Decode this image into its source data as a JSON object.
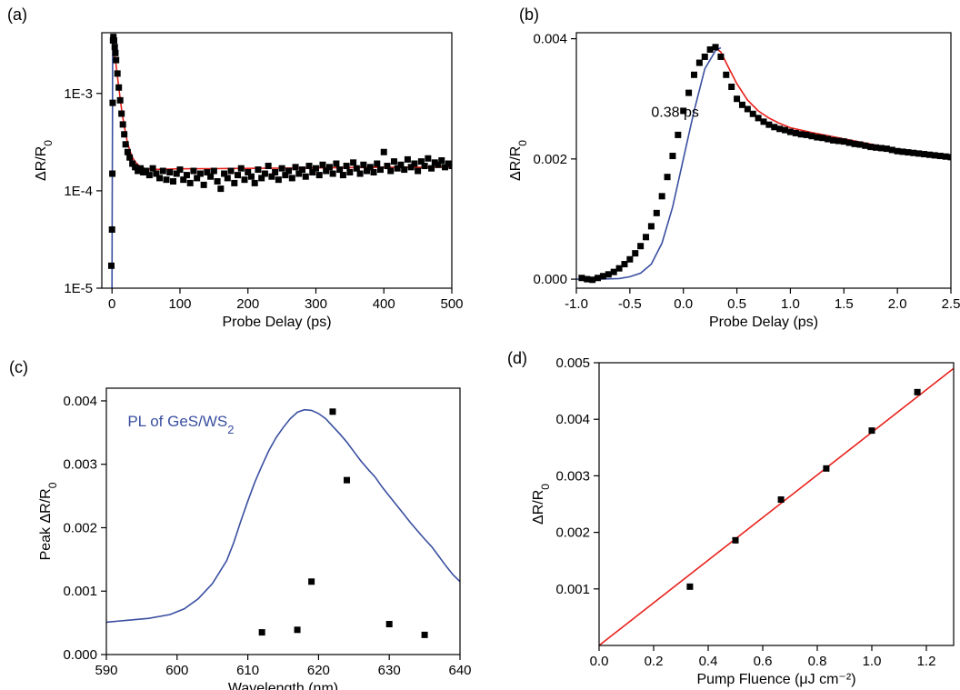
{
  "chart_data": [
    {
      "panel_label": "(a)",
      "type": "scatter",
      "xlabel": "Probe Delay (ps)",
      "ylabel_parts": [
        "ΔR/R",
        "0"
      ],
      "xlim": [
        -15,
        500
      ],
      "ylim": [
        1e-05,
        0.0042
      ],
      "yscale": "log",
      "xticks": [
        0,
        100,
        200,
        300,
        400,
        500
      ],
      "xtick_labels": [
        "0",
        "100",
        "200",
        "300",
        "400",
        "500"
      ],
      "yticks": [
        1e-05,
        0.0001,
        0.001
      ],
      "ytick_labels": [
        "1E-5",
        "1E-4",
        "1E-3"
      ],
      "series": [
        {
          "kind": "points",
          "color": "#000000",
          "x": [
            -1,
            0,
            0.5,
            1,
            1.5,
            2,
            3,
            4,
            5,
            6,
            8,
            10,
            12,
            14,
            16,
            18,
            20,
            23,
            26,
            30,
            34,
            38,
            42,
            46,
            50,
            55,
            60,
            65,
            70,
            75,
            80,
            85,
            90,
            95,
            100,
            105,
            110,
            115,
            120,
            125,
            130,
            135,
            140,
            145,
            150,
            155,
            160,
            165,
            170,
            175,
            180,
            185,
            190,
            195,
            200,
            205,
            210,
            215,
            220,
            225,
            230,
            235,
            240,
            245,
            250,
            255,
            260,
            265,
            270,
            275,
            280,
            285,
            290,
            295,
            300,
            305,
            310,
            315,
            320,
            325,
            330,
            335,
            340,
            345,
            350,
            355,
            360,
            365,
            370,
            375,
            380,
            385,
            390,
            395,
            400,
            405,
            410,
            415,
            420,
            425,
            430,
            435,
            440,
            445,
            450,
            455,
            460,
            465,
            470,
            475,
            480,
            485,
            490,
            495,
            500
          ],
          "y": [
            1.7e-05,
            4e-05,
            0.00015,
            0.0008,
            0.0035,
            0.0038,
            0.0035,
            0.003,
            0.0026,
            0.0022,
            0.0016,
            0.00115,
            0.00085,
            0.00062,
            0.00048,
            0.00038,
            0.0003,
            0.00025,
            0.00022,
            0.00019,
            0.000175,
            0.00016,
            0.00017,
            0.000155,
            0.00016,
            0.000145,
            0.00017,
            0.00015,
            0.000135,
            0.00016,
            0.00013,
            0.000155,
            0.000125,
            0.00015,
            0.000165,
            0.00013,
            0.000145,
            0.00012,
            0.00016,
            0.000135,
            0.00015,
            0.000115,
            0.000155,
            0.00014,
            0.00016,
            0.000125,
            0.000105,
            0.00015,
            0.000135,
            0.00016,
            0.00012,
            0.000145,
            0.00017,
            0.00013,
            0.000155,
            0.00014,
            0.00012,
            0.000165,
            0.000135,
            0.00015,
            0.00018,
            0.00014,
            0.000155,
            0.00013,
            0.00017,
            0.000145,
            0.00016,
            0.000135,
            0.000175,
            0.00015,
            0.000165,
            0.00014,
            0.00018,
            0.000155,
            0.00017,
            0.000145,
            0.000185,
            0.00016,
            0.000175,
            0.00015,
            0.00019,
            0.000165,
            0.000145,
            0.00018,
            0.000155,
            0.000195,
            0.00017,
            0.00015,
            0.000185,
            0.00016,
            0.000175,
            0.000155,
            0.00019,
            0.000165,
            0.00025,
            0.00018,
            0.00016,
            0.0002,
            0.00017,
            0.000185,
            0.000165,
            0.00021,
            0.000175,
            0.00019,
            0.00016,
            0.0002,
            0.00018,
            0.000215,
            0.00017,
            0.000195,
            0.000185,
            0.000205,
            0.000175,
            0.00019,
            0.00018
          ]
        },
        {
          "kind": "line",
          "color": "#e8201a",
          "x": [
            1,
            2,
            4,
            6,
            8,
            10,
            12,
            15,
            18,
            22,
            26,
            30,
            35,
            40,
            45,
            50,
            60,
            70,
            80,
            100,
            150,
            200,
            250,
            300,
            350,
            400,
            450,
            500
          ],
          "y": [
            0.0033,
            0.0031,
            0.00245,
            0.00195,
            0.0015,
            0.00115,
            0.00088,
            0.00062,
            0.00046,
            0.00033,
            0.00026,
            0.00022,
            0.000195,
            0.00018,
            0.000172,
            0.000168,
            0.000166,
            0.000166,
            0.000167,
            0.000168,
            0.000169,
            0.00017,
            0.000171,
            0.000172,
            0.000173,
            0.000174,
            0.000174,
            0.000175
          ]
        },
        {
          "kind": "line",
          "color": "#3a4fa0",
          "x": [
            0,
            0.3,
            0.6,
            0.8,
            1.0,
            1.2
          ],
          "y": [
            1e-05,
            6e-05,
            0.0004,
            0.0014,
            0.0028,
            0.0034
          ]
        }
      ]
    },
    {
      "panel_label": "(b)",
      "type": "scatter",
      "xlabel": "Probe Delay (ps)",
      "ylabel_parts": [
        "ΔR/R",
        "0"
      ],
      "xlim": [
        -1.0,
        2.5
      ],
      "ylim": [
        -0.00015,
        0.0041
      ],
      "xticks": [
        -1.0,
        -0.5,
        0.0,
        0.5,
        1.0,
        1.5,
        2.0,
        2.5
      ],
      "xtick_labels": [
        "-1.0",
        "-0.5",
        "0.0",
        "0.5",
        "1.0",
        "1.5",
        "2.0",
        "2.5"
      ],
      "yticks": [
        0.0,
        0.002,
        0.004
      ],
      "ytick_labels": [
        "0.000",
        "0.002",
        "0.004"
      ],
      "annotations": [
        {
          "text": "0.38 ps",
          "x": -0.3,
          "y": 0.0027
        }
      ],
      "series": [
        {
          "kind": "points",
          "color": "#000000",
          "x": [
            -0.95,
            -0.9,
            -0.85,
            -0.8,
            -0.75,
            -0.7,
            -0.65,
            -0.6,
            -0.55,
            -0.5,
            -0.45,
            -0.4,
            -0.35,
            -0.3,
            -0.25,
            -0.2,
            -0.15,
            -0.1,
            -0.05,
            0.0,
            0.05,
            0.1,
            0.15,
            0.2,
            0.25,
            0.3,
            0.35,
            0.4,
            0.45,
            0.5,
            0.55,
            0.6,
            0.65,
            0.7,
            0.75,
            0.8,
            0.85,
            0.9,
            0.95,
            1.0,
            1.05,
            1.1,
            1.15,
            1.2,
            1.25,
            1.3,
            1.35,
            1.4,
            1.45,
            1.5,
            1.55,
            1.6,
            1.65,
            1.7,
            1.75,
            1.8,
            1.85,
            1.9,
            1.95,
            2.0,
            2.05,
            2.1,
            2.15,
            2.2,
            2.25,
            2.3,
            2.35,
            2.4,
            2.45,
            2.5
          ],
          "y": [
            2e-05,
            0.0,
            -1e-05,
            2e-05,
            5e-05,
            8e-05,
            0.00012,
            0.00018,
            0.00025,
            0.00033,
            0.00043,
            0.00055,
            0.0007,
            0.00088,
            0.0011,
            0.00138,
            0.0017,
            0.00205,
            0.0024,
            0.0028,
            0.0031,
            0.0034,
            0.0036,
            0.0037,
            0.00382,
            0.00386,
            0.0037,
            0.0034,
            0.0032,
            0.003,
            0.0029,
            0.00283,
            0.00275,
            0.00268,
            0.00262,
            0.00257,
            0.00253,
            0.0025,
            0.00248,
            0.00245,
            0.00243,
            0.00241,
            0.0024,
            0.00238,
            0.00236,
            0.00235,
            0.00233,
            0.00231,
            0.0023,
            0.00229,
            0.00227,
            0.00225,
            0.00224,
            0.00222,
            0.0022,
            0.00219,
            0.00218,
            0.00217,
            0.00215,
            0.00213,
            0.00212,
            0.00211,
            0.0021,
            0.00209,
            0.00208,
            0.00207,
            0.00206,
            0.00205,
            0.00204,
            0.00203
          ]
        },
        {
          "kind": "line",
          "color": "#3a4fa0",
          "x": [
            -1.0,
            -0.8,
            -0.6,
            -0.5,
            -0.4,
            -0.3,
            -0.2,
            -0.1,
            0.0,
            0.1,
            0.2,
            0.3,
            0.35
          ],
          "y": [
            0.0,
            0.0,
            1e-05,
            4e-05,
            0.0001,
            0.00025,
            0.0006,
            0.0012,
            0.002,
            0.0028,
            0.0035,
            0.0038,
            0.00385
          ]
        },
        {
          "kind": "line",
          "color": "#e8201a",
          "x": [
            0.3,
            0.35,
            0.4,
            0.5,
            0.6,
            0.7,
            0.8,
            0.9,
            1.0,
            1.2,
            1.4,
            1.6,
            1.8,
            2.0,
            2.2,
            2.5
          ],
          "y": [
            0.00385,
            0.00378,
            0.0036,
            0.00325,
            0.00298,
            0.0028,
            0.00268,
            0.00259,
            0.00252,
            0.00244,
            0.00237,
            0.0023,
            0.00223,
            0.00216,
            0.0021,
            0.00202
          ]
        }
      ]
    },
    {
      "panel_label": "(c)",
      "type": "scatter",
      "xlabel": "Wavelength (nm)",
      "ylabel_parts": [
        "Peak ΔR/R",
        "0"
      ],
      "xlim": [
        590,
        640
      ],
      "ylim": [
        0,
        0.0042
      ],
      "xticks": [
        590,
        600,
        610,
        620,
        630,
        640
      ],
      "xtick_labels": [
        "590",
        "600",
        "610",
        "620",
        "630",
        "640"
      ],
      "yticks": [
        0.0,
        0.001,
        0.002,
        0.003,
        0.004
      ],
      "ytick_labels": [
        "0.000",
        "0.001",
        "0.002",
        "0.003",
        "0.004"
      ],
      "annotations": [
        {
          "text_parts": [
            "PL of GeS/WS",
            "2"
          ],
          "x": 593,
          "y": 0.0036,
          "color": "#3a4fa0"
        }
      ],
      "series": [
        {
          "kind": "points",
          "color": "#000000",
          "x": [
            612,
            617,
            619,
            622,
            624,
            630,
            635
          ],
          "y": [
            0.00035,
            0.00039,
            0.00115,
            0.00383,
            0.00275,
            0.00048,
            0.00031
          ]
        },
        {
          "kind": "line",
          "color": "#3a4fa0",
          "x": [
            590,
            593,
            596,
            599,
            601,
            603,
            605,
            607,
            608,
            609,
            610,
            611,
            612,
            613,
            614,
            615,
            616,
            617,
            618,
            619,
            620,
            621,
            622,
            623,
            624,
            625,
            626,
            627,
            628,
            629,
            630,
            631,
            632,
            633,
            634,
            635,
            636,
            637,
            638,
            639,
            640
          ],
          "y": [
            0.00051,
            0.00054,
            0.00057,
            0.00063,
            0.00072,
            0.00088,
            0.00112,
            0.00148,
            0.00176,
            0.0021,
            0.00242,
            0.00272,
            0.00298,
            0.00322,
            0.00342,
            0.00358,
            0.00372,
            0.00382,
            0.00386,
            0.00385,
            0.0038,
            0.00372,
            0.0036,
            0.00348,
            0.00335,
            0.0032,
            0.00305,
            0.00292,
            0.0028,
            0.00264,
            0.0025,
            0.00236,
            0.00222,
            0.00208,
            0.00195,
            0.00182,
            0.0017,
            0.00155,
            0.0014,
            0.00126,
            0.00115
          ]
        }
      ]
    },
    {
      "panel_label": "(d)",
      "type": "scatter",
      "xlabel": "Pump Fluence (μJ cm⁻²)",
      "ylabel_parts": [
        "ΔR/R",
        "0"
      ],
      "xlim": [
        0.0,
        1.3
      ],
      "ylim": [
        0.0,
        0.005
      ],
      "xticks": [
        0.0,
        0.2,
        0.4,
        0.6,
        0.8,
        1.0,
        1.2
      ],
      "xtick_labels": [
        "0.0",
        "0.2",
        "0.4",
        "0.6",
        "0.8",
        "1.0",
        "1.2"
      ],
      "yticks": [
        0.001,
        0.002,
        0.003,
        0.004,
        0.005
      ],
      "ytick_labels": [
        "0.001",
        "0.002",
        "0.003",
        "0.004",
        "0.005"
      ],
      "series": [
        {
          "kind": "points",
          "color": "#000000",
          "x": [
            0.333,
            0.5,
            0.667,
            0.833,
            1.0,
            1.167
          ],
          "y": [
            0.00104,
            0.00186,
            0.00258,
            0.00313,
            0.0038,
            0.00448
          ]
        },
        {
          "kind": "line",
          "color": "#e8201a",
          "x": [
            0.0,
            1.3
          ],
          "y": [
            0.0,
            0.0049
          ]
        }
      ]
    }
  ]
}
